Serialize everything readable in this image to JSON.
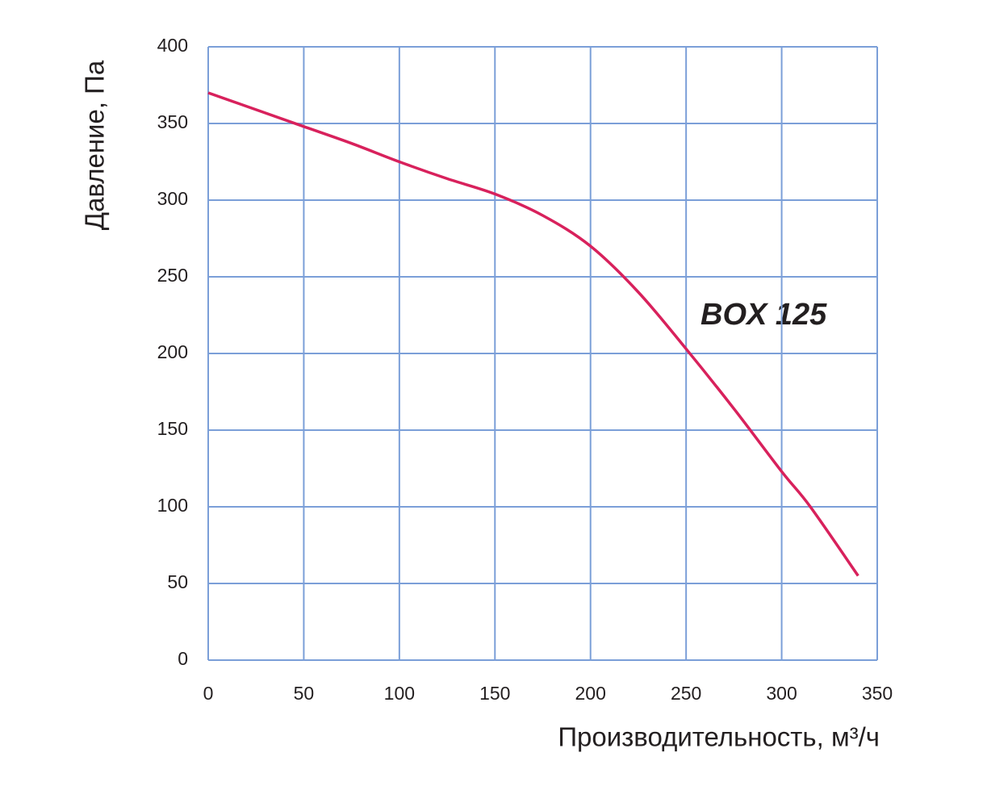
{
  "chart_data": {
    "type": "line",
    "x_label": "Производительность, м³/ч",
    "y_label": "Давление, Па",
    "annotation": "BOX 125",
    "x": [
      0,
      25,
      50,
      75,
      100,
      125,
      150,
      175,
      200,
      225,
      250,
      275,
      300,
      315,
      340
    ],
    "values": [
      370,
      359,
      348,
      337,
      325,
      314,
      304,
      290,
      270,
      240,
      203,
      164,
      123,
      100,
      55
    ],
    "color": "#d8215c",
    "xlim": [
      0,
      350
    ],
    "xticks": [
      0,
      50,
      100,
      150,
      200,
      250,
      300,
      350
    ],
    "ylim": [
      0,
      400
    ],
    "yticks": [
      0,
      50,
      100,
      150,
      200,
      250,
      300,
      350,
      400
    ],
    "grid": true
  }
}
